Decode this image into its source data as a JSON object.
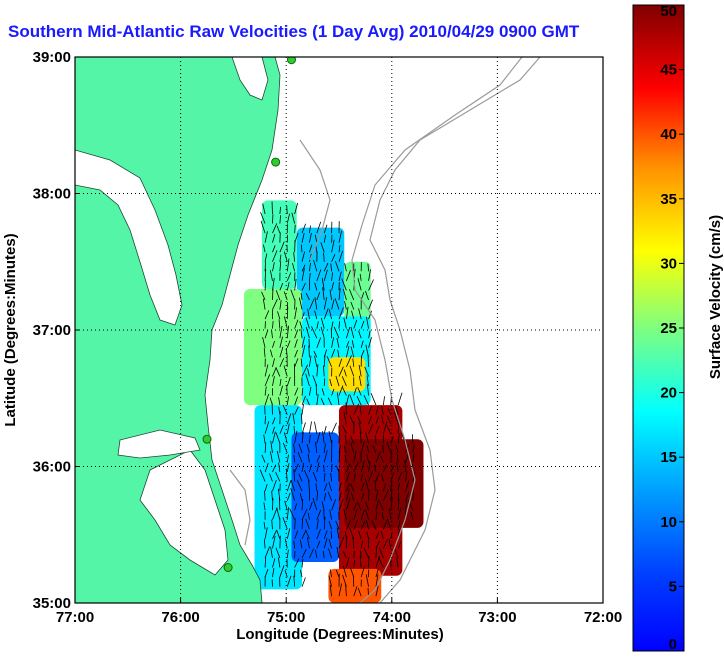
{
  "title": "Southern Mid-Atlantic Raw Velocities (1 Day Avg) 2010/04/29 0900 GMT",
  "chart_data": {
    "type": "heatmap",
    "title": "Southern Mid-Atlantic Raw Velocities (1 Day Avg) 2010/04/29 0900 GMT",
    "xlabel": "Longitude (Degrees:Minutes)",
    "ylabel": "Latitude (Degrees:Minutes)",
    "colorbar_label": "Surface Velocity (cm/s)",
    "x_ticks": [
      "77:00",
      "76:00",
      "75:00",
      "74:00",
      "73:00",
      "72:00"
    ],
    "y_ticks": [
      "39:00",
      "38:00",
      "37:00",
      "36:00",
      "35:00"
    ],
    "colorbar_ticks": [
      "0",
      "5",
      "10",
      "15",
      "20",
      "25",
      "30",
      "35",
      "40",
      "45",
      "50"
    ],
    "xlim": [
      -77,
      -72
    ],
    "ylim": [
      35,
      39
    ],
    "clim": [
      0,
      50
    ],
    "grid": true,
    "colormap": "jet",
    "land_color": "#55f5a8",
    "stations": [
      {
        "lon": -74.95,
        "lat": 38.98
      },
      {
        "lon": -75.1,
        "lat": 38.23
      },
      {
        "lon": -75.75,
        "lat": 36.2
      },
      {
        "lon": -75.55,
        "lat": 35.26
      }
    ],
    "speed_field": [
      {
        "lon_min": -75.23,
        "lon_max": -74.9,
        "lat_min": 37.3,
        "lat_max": 37.95,
        "speed": 22
      },
      {
        "lon_min": -74.9,
        "lon_max": -74.45,
        "lat_min": 37.1,
        "lat_max": 37.75,
        "speed": 15
      },
      {
        "lon_min": -74.45,
        "lon_max": -74.2,
        "lat_min": 36.9,
        "lat_max": 37.5,
        "speed": 24
      },
      {
        "lon_min": -75.4,
        "lon_max": -74.85,
        "lat_min": 36.45,
        "lat_max": 37.3,
        "speed": 25
      },
      {
        "lon_min": -74.85,
        "lon_max": -74.2,
        "lat_min": 36.45,
        "lat_max": 37.1,
        "speed": 18
      },
      {
        "lon_min": -74.6,
        "lon_max": -74.25,
        "lat_min": 36.55,
        "lat_max": 36.8,
        "speed": 33
      },
      {
        "lon_min": -75.3,
        "lon_max": -74.85,
        "lat_min": 35.1,
        "lat_max": 36.45,
        "speed": 17
      },
      {
        "lon_min": -74.95,
        "lon_max": -74.5,
        "lat_min": 35.3,
        "lat_max": 36.25,
        "speed": 8
      },
      {
        "lon_min": -74.5,
        "lon_max": -73.9,
        "lat_min": 35.2,
        "lat_max": 36.45,
        "speed": 48
      },
      {
        "lon_min": -74.45,
        "lon_max": -73.7,
        "lat_min": 35.55,
        "lat_max": 36.2,
        "speed": 50
      },
      {
        "lon_min": -74.6,
        "lon_max": -74.1,
        "lat_min": 35.0,
        "lat_max": 35.25,
        "speed": 40
      }
    ]
  }
}
